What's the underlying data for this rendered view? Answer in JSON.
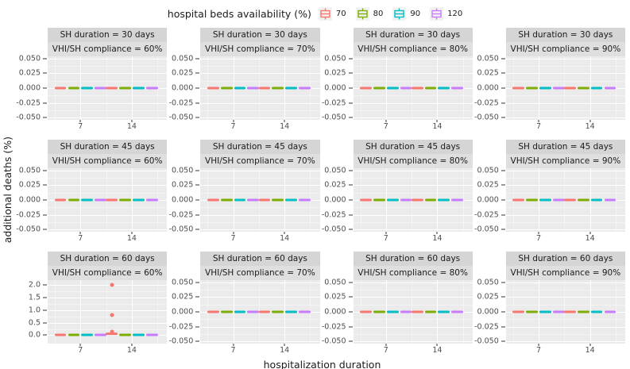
{
  "legend": {
    "title": "hospital beds availability (%)",
    "items": [
      {
        "label": "70",
        "color": "#F8766D"
      },
      {
        "label": "80",
        "color": "#7CAE00"
      },
      {
        "label": "90",
        "color": "#00BFC4"
      },
      {
        "label": "120",
        "color": "#C77CFF"
      }
    ]
  },
  "axes": {
    "y_title": "additional deaths (%)",
    "x_title": "hospitalization duration"
  },
  "style": {
    "panel_bg": "#EBEBEB",
    "strip_bg_top": "#D5D5D5",
    "strip_bg_bottom": "#DFDFDF",
    "tick_text_color": "#4D4D4D",
    "text_color": "#1A1A1A"
  },
  "chart_data": {
    "type": "bar",
    "subtype": "faceted dodged boxplots (all collapsed to flat lines at y=0 except SH60/60% panel)",
    "facet_row_variable": "SH duration (days)",
    "facet_col_variable": "VHI/SH compliance (%)",
    "legend_variable": "hospital beds availability (%)",
    "groups": [
      "70",
      "80",
      "90",
      "120"
    ],
    "colors": [
      "#F8766D",
      "#7CAE00",
      "#00BFC4",
      "#C77CFF"
    ],
    "x_categories": [
      "7",
      "14"
    ],
    "grid": "on",
    "legend_position": "top",
    "facets": [
      {
        "strip_top": "SH duration = 30 days",
        "strip_bottom": "VHI/SH compliance = 60%",
        "ylim": [
          -0.054,
          0.054
        ],
        "yticks": [
          0.05,
          0.025,
          0,
          -0.025,
          -0.05
        ],
        "ytick_labels": [
          "0.050",
          "0.025",
          "0.000",
          "-0.025",
          "-0.050"
        ],
        "xticks": [
          "7",
          "14"
        ],
        "boxes": [
          {
            "x": "7",
            "ranges": [
              [
                0,
                0
              ],
              [
                0,
                0
              ],
              [
                0,
                0
              ],
              [
                0,
                0
              ]
            ]
          },
          {
            "x": "14",
            "ranges": [
              [
                0,
                0
              ],
              [
                0,
                0
              ],
              [
                0,
                0
              ],
              [
                0,
                0
              ]
            ]
          }
        ],
        "points": []
      },
      {
        "strip_top": "SH duration = 30 days",
        "strip_bottom": "VHI/SH compliance = 70%",
        "ylim": [
          -0.054,
          0.054
        ],
        "yticks": [
          0.05,
          0.025,
          0,
          -0.025,
          -0.05
        ],
        "ytick_labels": [
          "0.050",
          "0.025",
          "0.000",
          "-0.025",
          "-0.050"
        ],
        "xticks": [
          "7",
          "14"
        ],
        "boxes": [
          {
            "x": "7",
            "ranges": [
              [
                0,
                0
              ],
              [
                0,
                0
              ],
              [
                0,
                0
              ],
              [
                0,
                0
              ]
            ]
          },
          {
            "x": "14",
            "ranges": [
              [
                0,
                0
              ],
              [
                0,
                0
              ],
              [
                0,
                0
              ],
              [
                0,
                0
              ]
            ]
          }
        ],
        "points": []
      },
      {
        "strip_top": "SH duration = 30 days",
        "strip_bottom": "VHI/SH compliance = 80%",
        "ylim": [
          -0.054,
          0.054
        ],
        "yticks": [
          0.05,
          0.025,
          0,
          -0.025,
          -0.05
        ],
        "ytick_labels": [
          "0.050",
          "0.025",
          "0.000",
          "-0.025",
          "-0.050"
        ],
        "xticks": [
          "7",
          "14"
        ],
        "boxes": [
          {
            "x": "7",
            "ranges": [
              [
                0,
                0
              ],
              [
                0,
                0
              ],
              [
                0,
                0
              ],
              [
                0,
                0
              ]
            ]
          },
          {
            "x": "14",
            "ranges": [
              [
                0,
                0
              ],
              [
                0,
                0
              ],
              [
                0,
                0
              ],
              [
                0,
                0
              ]
            ]
          }
        ],
        "points": []
      },
      {
        "strip_top": "SH duration = 30 days",
        "strip_bottom": "VHI/SH compliance = 90%",
        "ylim": [
          -0.054,
          0.054
        ],
        "yticks": [
          0.05,
          0.025,
          0,
          -0.025,
          -0.05
        ],
        "ytick_labels": [
          "0.050",
          "0.025",
          "0.000",
          "-0.025",
          "-0.050"
        ],
        "xticks": [
          "7",
          "14"
        ],
        "boxes": [
          {
            "x": "7",
            "ranges": [
              [
                0,
                0
              ],
              [
                0,
                0
              ],
              [
                0,
                0
              ],
              [
                0,
                0
              ]
            ]
          },
          {
            "x": "14",
            "ranges": [
              [
                0,
                0
              ],
              [
                0,
                0
              ],
              [
                0,
                0
              ],
              [
                0,
                0
              ]
            ]
          }
        ],
        "points": []
      },
      {
        "strip_top": "SH duration = 45 days",
        "strip_bottom": "VHI/SH compliance = 60%",
        "ylim": [
          -0.054,
          0.054
        ],
        "yticks": [
          0.05,
          0.025,
          0,
          -0.025,
          -0.05
        ],
        "ytick_labels": [
          "0.050",
          "0.025",
          "0.000",
          "-0.025",
          "-0.050"
        ],
        "xticks": [
          "7",
          "14"
        ],
        "boxes": [
          {
            "x": "7",
            "ranges": [
              [
                0,
                0
              ],
              [
                0,
                0
              ],
              [
                0,
                0
              ],
              [
                0,
                0
              ]
            ]
          },
          {
            "x": "14",
            "ranges": [
              [
                0,
                0
              ],
              [
                0,
                0
              ],
              [
                0,
                0
              ],
              [
                0,
                0
              ]
            ]
          }
        ],
        "points": []
      },
      {
        "strip_top": "SH duration = 45 days",
        "strip_bottom": "VHI/SH compliance = 70%",
        "ylim": [
          -0.054,
          0.054
        ],
        "yticks": [
          0.05,
          0.025,
          0,
          -0.025,
          -0.05
        ],
        "ytick_labels": [
          "0.050",
          "0.025",
          "0.000",
          "-0.025",
          "-0.050"
        ],
        "xticks": [
          "7",
          "14"
        ],
        "boxes": [
          {
            "x": "7",
            "ranges": [
              [
                0,
                0
              ],
              [
                0,
                0
              ],
              [
                0,
                0
              ],
              [
                0,
                0
              ]
            ]
          },
          {
            "x": "14",
            "ranges": [
              [
                0,
                0
              ],
              [
                0,
                0
              ],
              [
                0,
                0
              ],
              [
                0,
                0
              ]
            ]
          }
        ],
        "points": []
      },
      {
        "strip_top": "SH duration = 45 days",
        "strip_bottom": "VHI/SH compliance = 80%",
        "ylim": [
          -0.054,
          0.054
        ],
        "yticks": [
          0.05,
          0.025,
          0,
          -0.025,
          -0.05
        ],
        "ytick_labels": [
          "0.050",
          "0.025",
          "0.000",
          "-0.025",
          "-0.050"
        ],
        "xticks": [
          "7",
          "14"
        ],
        "boxes": [
          {
            "x": "7",
            "ranges": [
              [
                0,
                0
              ],
              [
                0,
                0
              ],
              [
                0,
                0
              ],
              [
                0,
                0
              ]
            ]
          },
          {
            "x": "14",
            "ranges": [
              [
                0,
                0
              ],
              [
                0,
                0
              ],
              [
                0,
                0
              ],
              [
                0,
                0
              ]
            ]
          }
        ],
        "points": []
      },
      {
        "strip_top": "SH duration = 45 days",
        "strip_bottom": "VHI/SH compliance = 90%",
        "ylim": [
          -0.054,
          0.054
        ],
        "yticks": [
          0.05,
          0.025,
          0,
          -0.025,
          -0.05
        ],
        "ytick_labels": [
          "0.050",
          "0.025",
          "0.000",
          "-0.025",
          "-0.050"
        ],
        "xticks": [
          "7",
          "14"
        ],
        "boxes": [
          {
            "x": "7",
            "ranges": [
              [
                0,
                0
              ],
              [
                0,
                0
              ],
              [
                0,
                0
              ],
              [
                0,
                0
              ]
            ]
          },
          {
            "x": "14",
            "ranges": [
              [
                0,
                0
              ],
              [
                0,
                0
              ],
              [
                0,
                0
              ],
              [
                0,
                0
              ]
            ]
          }
        ],
        "points": []
      },
      {
        "strip_top": "SH duration = 60 days",
        "strip_bottom": "VHI/SH compliance = 60%",
        "ylim": [
          -0.33,
          2.18
        ],
        "yticks": [
          2.0,
          1.5,
          1.0,
          0.5,
          0.0
        ],
        "ytick_labels": [
          "2.0",
          "1.5",
          "1.0",
          "0.5",
          "0.0"
        ],
        "xticks": [
          "7",
          "14"
        ],
        "boxes": [
          {
            "x": "7",
            "ranges": [
              [
                0,
                0
              ],
              [
                0,
                0
              ],
              [
                0,
                0
              ],
              [
                0,
                0
              ]
            ]
          },
          {
            "x": "14",
            "ranges": [
              [
                0,
                0.12
              ],
              [
                0,
                0
              ],
              [
                0,
                0
              ],
              [
                0,
                0
              ]
            ]
          }
        ],
        "points": [
          {
            "x": "14",
            "group": 0,
            "y": 2.0
          },
          {
            "x": "14",
            "group": 0,
            "y": 0.8
          },
          {
            "x": "14",
            "group": 0,
            "y": 0.15
          }
        ]
      },
      {
        "strip_top": "SH duration = 60 days",
        "strip_bottom": "VHI/SH compliance = 70%",
        "ylim": [
          -0.054,
          0.054
        ],
        "yticks": [
          0.05,
          0.025,
          0,
          -0.025,
          -0.05
        ],
        "ytick_labels": [
          "0.050",
          "0.025",
          "0.000",
          "-0.025",
          "-0.050"
        ],
        "xticks": [
          "7",
          "14"
        ],
        "boxes": [
          {
            "x": "7",
            "ranges": [
              [
                0,
                0
              ],
              [
                0,
                0
              ],
              [
                0,
                0
              ],
              [
                0,
                0
              ]
            ]
          },
          {
            "x": "14",
            "ranges": [
              [
                0,
                0
              ],
              [
                0,
                0
              ],
              [
                0,
                0
              ],
              [
                0,
                0
              ]
            ]
          }
        ],
        "points": []
      },
      {
        "strip_top": "SH duration = 60 days",
        "strip_bottom": "VHI/SH compliance = 80%",
        "ylim": [
          -0.054,
          0.054
        ],
        "yticks": [
          0.05,
          0.025,
          0,
          -0.025,
          -0.05
        ],
        "ytick_labels": [
          "0.050",
          "0.025",
          "0.000",
          "-0.025",
          "-0.050"
        ],
        "xticks": [
          "7",
          "14"
        ],
        "boxes": [
          {
            "x": "7",
            "ranges": [
              [
                0,
                0
              ],
              [
                0,
                0
              ],
              [
                0,
                0
              ],
              [
                0,
                0
              ]
            ]
          },
          {
            "x": "14",
            "ranges": [
              [
                0,
                0
              ],
              [
                0,
                0
              ],
              [
                0,
                0
              ],
              [
                0,
                0
              ]
            ]
          }
        ],
        "points": []
      },
      {
        "strip_top": "SH duration = 60 days",
        "strip_bottom": "VHI/SH compliance = 90%",
        "ylim": [
          -0.054,
          0.054
        ],
        "yticks": [
          0.05,
          0.025,
          0,
          -0.025,
          -0.05
        ],
        "ytick_labels": [
          "0.050",
          "0.025",
          "0.000",
          "-0.025",
          "-0.050"
        ],
        "xticks": [
          "7",
          "14"
        ],
        "boxes": [
          {
            "x": "7",
            "ranges": [
              [
                0,
                0
              ],
              [
                0,
                0
              ],
              [
                0,
                0
              ],
              [
                0,
                0
              ]
            ]
          },
          {
            "x": "14",
            "ranges": [
              [
                0,
                0
              ],
              [
                0,
                0
              ],
              [
                0,
                0
              ],
              [
                0,
                0
              ]
            ]
          }
        ],
        "points": []
      }
    ]
  }
}
